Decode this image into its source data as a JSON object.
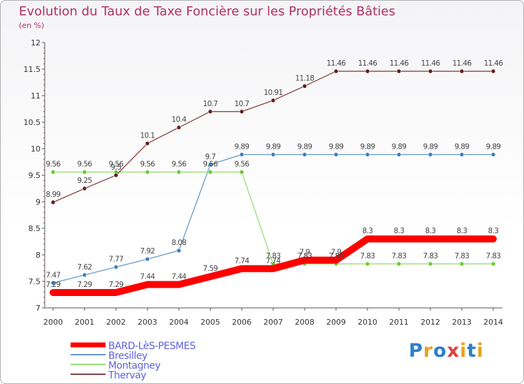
{
  "title": "Evolution du Taux de Taxe Foncière sur les Propriétés Bâties",
  "subtitle": "(en %)",
  "logo": {
    "letters": [
      "P",
      "r",
      "o",
      "x",
      "i",
      "t",
      "i"
    ],
    "colors": [
      "#2e7fc8",
      "#e8a020",
      "#2e7fc8",
      "#e04040",
      "#e8a020",
      "#2e7fc8",
      "#e8a020"
    ]
  },
  "chart_data": {
    "type": "line",
    "x": [
      "2000",
      "2001",
      "2002",
      "2003",
      "2004",
      "2005",
      "2006",
      "2007",
      "2008",
      "2009",
      "2010",
      "2011",
      "2012",
      "2013",
      "2014"
    ],
    "ylim": [
      7,
      12
    ],
    "yticks": [
      "7",
      "7.5",
      "8",
      "8.5",
      "9",
      "9.5",
      "10",
      "10.5",
      "11",
      "11.5",
      "12"
    ],
    "grid": false,
    "legend_position": "bottom-left",
    "series": [
      {
        "name": "BARD-LèS-PESMES",
        "color": "#ff0000",
        "marker": "#ff0000",
        "thick": true,
        "values": [
          7.29,
          7.29,
          7.29,
          7.44,
          7.44,
          7.59,
          7.74,
          7.74,
          7.9,
          7.9,
          8.3,
          8.3,
          8.3,
          8.3,
          8.3
        ],
        "labels": [
          "7.29",
          "7.29",
          "7.29",
          "7.44",
          "7.44",
          "7.59",
          "7.74",
          "7.74",
          "7.9",
          "7.9",
          "8.3",
          "8.3",
          "8.3",
          "8.3",
          "8.3"
        ]
      },
      {
        "name": "Bresilley",
        "color": "#6699cc",
        "marker": "#3a7fc0",
        "thick": false,
        "values": [
          7.47,
          7.62,
          7.77,
          7.92,
          8.08,
          9.7,
          9.89,
          9.89,
          9.89,
          9.89,
          9.89,
          9.89,
          9.89,
          9.89,
          9.89
        ],
        "labels": [
          "7.47",
          "7.62",
          "7.77",
          "7.92",
          "8.08",
          "9.7",
          "9.89",
          "9.89",
          "9.89",
          "9.89",
          "9.89",
          "9.89",
          "9.89",
          "9.89",
          "9.89"
        ]
      },
      {
        "name": "Montagney",
        "color": "#99dd77",
        "marker": "#66cc33",
        "thick": false,
        "values": [
          9.56,
          9.56,
          9.56,
          9.56,
          9.56,
          9.56,
          9.56,
          7.83,
          7.83,
          7.83,
          7.83,
          7.83,
          7.83,
          7.83,
          7.83
        ],
        "labels": [
          "9.56",
          "9.56",
          "9.56",
          "9.56",
          "9.56",
          "9.56",
          "9.56",
          "7.83",
          "7.83",
          "7.83",
          "7.83",
          "7.83",
          "7.83",
          "7.83",
          "7.83"
        ]
      },
      {
        "name": "Thervay",
        "color": "#884444",
        "marker": "#661c1c",
        "thick": false,
        "values": [
          8.99,
          9.25,
          9.5,
          10.1,
          10.4,
          10.7,
          10.7,
          10.91,
          11.18,
          11.46,
          11.46,
          11.46,
          11.46,
          11.46,
          11.46
        ],
        "labels": [
          "8.99",
          "9.25",
          "9.5",
          "10.1",
          "10.4",
          "10.7",
          "10.7",
          "10.91",
          "11.18",
          "11.46",
          "11.46",
          "11.46",
          "11.46",
          "11.46",
          "11.46"
        ]
      }
    ]
  }
}
